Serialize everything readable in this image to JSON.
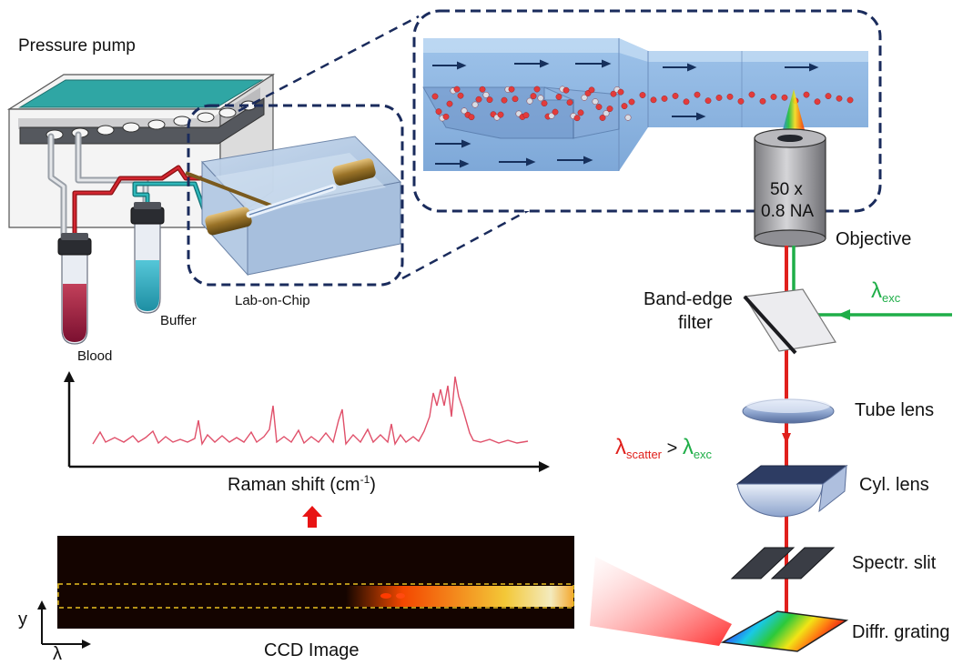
{
  "labels": {
    "pressure_pump": "Pressure pump",
    "lab_on_chip": "Lab-on-Chip",
    "blood": "Blood",
    "buffer": "Buffer",
    "objective_mag": "50 x",
    "objective_na": "0.8 NA",
    "objective": "Objective",
    "band_edge_1": "Band-edge",
    "band_edge_2": "filter",
    "lambda_symbol": "λ",
    "exc_sub": "exc",
    "scatter_sub": "scatter",
    "gt": " > ",
    "tube_lens": "Tube lens",
    "cyl_lens": "Cyl. lens",
    "spectr_slit": "Spectr. slit",
    "diffr_grating": "Diffr. grating",
    "raman_axis": "Raman shift (cm",
    "raman_sup": "-1",
    "raman_close": ")",
    "ccd_image": "CCD Image",
    "axis_y": "y",
    "axis_lambda": "λ"
  },
  "colors": {
    "laser_red": "#e0201c",
    "laser_green": "#1fae48",
    "dash_navy": "#1a2b5c",
    "spectrum_line": "#e0506a",
    "ccd_background": "#140400",
    "roi_dash": "#e8c020"
  },
  "icons": [
    "pressure-pump-icon",
    "sample-tube-icon",
    "lab-on-chip-icon",
    "objective-icon",
    "filter-icon",
    "lens-icon",
    "slit-icon",
    "grating-icon",
    "arrow-up-icon"
  ]
}
